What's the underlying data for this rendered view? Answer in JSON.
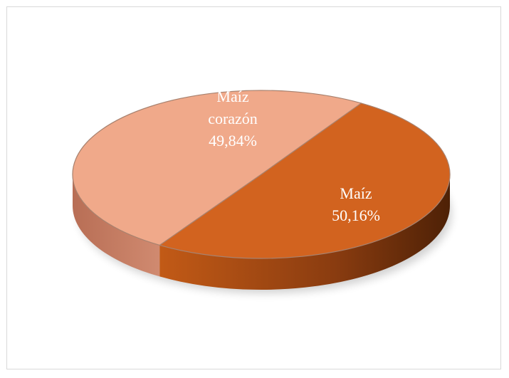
{
  "chart_data": {
    "type": "pie3d",
    "categories": [
      "Maíz corazón",
      "Maíz"
    ],
    "values": [
      49.84,
      50.16
    ],
    "value_labels": [
      "49,84%",
      "50,16%"
    ],
    "colors": [
      "#f0a98a",
      "#d2631f"
    ],
    "side_colors": [
      "#c47a60",
      "#8a3c10"
    ]
  }
}
